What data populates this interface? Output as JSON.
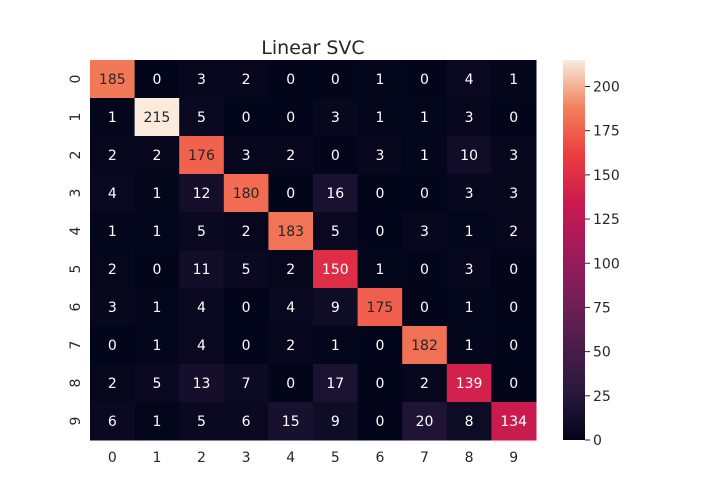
{
  "chart_data": {
    "type": "heatmap",
    "title": "Linear SVC",
    "x_categories": [
      "0",
      "1",
      "2",
      "3",
      "4",
      "5",
      "6",
      "7",
      "8",
      "9"
    ],
    "y_categories": [
      "0",
      "1",
      "2",
      "3",
      "4",
      "5",
      "6",
      "7",
      "8",
      "9"
    ],
    "matrix": [
      [
        185,
        0,
        3,
        2,
        0,
        0,
        1,
        0,
        4,
        1
      ],
      [
        1,
        215,
        5,
        0,
        0,
        3,
        1,
        1,
        3,
        0
      ],
      [
        2,
        2,
        176,
        3,
        2,
        0,
        3,
        1,
        10,
        3
      ],
      [
        4,
        1,
        12,
        180,
        0,
        16,
        0,
        0,
        3,
        3
      ],
      [
        1,
        1,
        5,
        2,
        183,
        5,
        0,
        3,
        1,
        2
      ],
      [
        2,
        0,
        11,
        5,
        2,
        150,
        1,
        0,
        3,
        0
      ],
      [
        3,
        1,
        4,
        0,
        4,
        9,
        175,
        0,
        1,
        0
      ],
      [
        0,
        1,
        4,
        0,
        2,
        1,
        0,
        182,
        1,
        0
      ],
      [
        2,
        5,
        13,
        7,
        0,
        17,
        0,
        2,
        139,
        0
      ],
      [
        6,
        1,
        5,
        6,
        15,
        9,
        0,
        20,
        8,
        134
      ]
    ],
    "colorbar": {
      "min": 0,
      "max": 215,
      "ticks": [
        "0",
        "25",
        "50",
        "75",
        "100",
        "125",
        "150",
        "175",
        "200"
      ],
      "colormap": "rocket"
    }
  }
}
